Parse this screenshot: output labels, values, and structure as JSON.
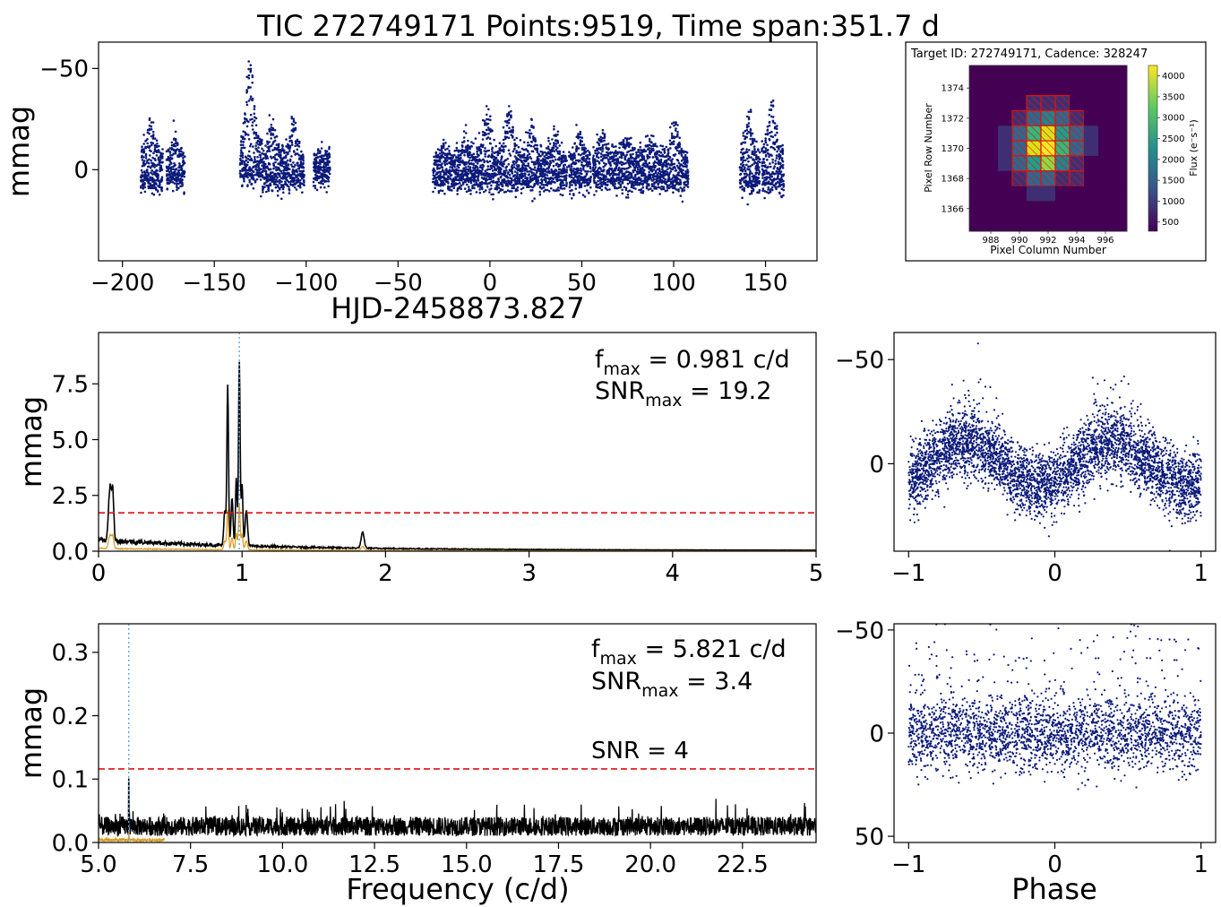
{
  "figure": {
    "title": "TIC 272749171  Points:9519,  Time span:351.7 d"
  },
  "colors": {
    "points": "#0b1a7a",
    "spectrum": "#000000",
    "spectrum_under": "#d89a1c",
    "threshold": "#e01010",
    "peak_marker": "#5aaaee",
    "snr_label": "#e01010"
  },
  "chart_data": [
    {
      "id": "lightcurve",
      "type": "scatter",
      "xlabel": "HJD-2458873.827",
      "ylabel": "mmag",
      "xlim": [
        -213,
        178
      ],
      "ylim": [
        45,
        -63
      ],
      "y_inverted": true,
      "xticks": [
        -200,
        -150,
        -100,
        -50,
        0,
        50,
        100,
        150
      ],
      "xtick_labels": [
        "−200",
        "−150",
        "−100",
        "−50",
        "0",
        "50",
        "100",
        "150"
      ],
      "yticks": [
        -50,
        0
      ],
      "ytick_labels": [
        "−50",
        "0"
      ],
      "segments": [
        {
          "x": [
            -190,
            -178
          ],
          "base": 0,
          "amp": 12,
          "peak": -28
        },
        {
          "x": [
            -176,
            -166
          ],
          "base": 0,
          "amp": 10,
          "peak": -20
        },
        {
          "x": [
            -136,
            -124
          ],
          "base": -5,
          "amp": 14,
          "peak": -53
        },
        {
          "x": [
            -124,
            -112
          ],
          "base": 0,
          "amp": 12,
          "peak": -28
        },
        {
          "x": [
            -112,
            -101
          ],
          "base": 0,
          "amp": 10,
          "peak": -30
        },
        {
          "x": [
            -96,
            -87
          ],
          "base": 0,
          "amp": 9,
          "peak": -12
        },
        {
          "x": [
            -31,
            -19
          ],
          "base": 0,
          "amp": 10,
          "peak": -15
        },
        {
          "x": [
            -19,
            -7
          ],
          "base": 0,
          "amp": 12,
          "peak": -20
        },
        {
          "x": [
            -7,
            5
          ],
          "base": 0,
          "amp": 12,
          "peak": -32
        },
        {
          "x": [
            5,
            17
          ],
          "base": 0,
          "amp": 12,
          "peak": -37
        },
        {
          "x": [
            17,
            30
          ],
          "base": 0,
          "amp": 11,
          "peak": -26
        },
        {
          "x": [
            30,
            42
          ],
          "base": 0,
          "amp": 10,
          "peak": -22
        },
        {
          "x": [
            43,
            55
          ],
          "base": 0,
          "amp": 11,
          "peak": -22
        },
        {
          "x": [
            56,
            68
          ],
          "base": 0,
          "amp": 11,
          "peak": -22
        },
        {
          "x": [
            68,
            82
          ],
          "base": 0,
          "amp": 11,
          "peak": -18
        },
        {
          "x": [
            82,
            95
          ],
          "base": 0,
          "amp": 11,
          "peak": -17
        },
        {
          "x": [
            95,
            108
          ],
          "base": 0,
          "amp": 11,
          "peak": -28
        },
        {
          "x": [
            136,
            147
          ],
          "base": 0,
          "amp": 13,
          "peak": -33
        },
        {
          "x": [
            148,
            160
          ],
          "base": 0,
          "amp": 13,
          "peak": -38
        }
      ]
    },
    {
      "id": "periodogram-low",
      "type": "line",
      "xlabel": "",
      "ylabel": "mmag",
      "xlim": [
        0,
        5
      ],
      "ylim": [
        0,
        9.8
      ],
      "xticks": [
        0,
        1,
        2,
        3,
        4,
        5
      ],
      "xtick_labels": [
        "0",
        "1",
        "2",
        "3",
        "4",
        "5"
      ],
      "yticks": [
        0,
        2.5,
        5.0,
        7.5
      ],
      "ytick_labels": [
        "0.0",
        "2.5",
        "5.0",
        "7.5"
      ],
      "threshold": 1.72,
      "peak_line_x": 0.981,
      "peaks": [
        {
          "f": 0.08,
          "a": 2.4,
          "w": 0.015
        },
        {
          "f": 0.1,
          "a": 1.9,
          "w": 0.01
        },
        {
          "f": 0.88,
          "a": 1.6,
          "w": 0.01
        },
        {
          "f": 0.9,
          "a": 7.2,
          "w": 0.008
        },
        {
          "f": 0.93,
          "a": 2.1,
          "w": 0.01
        },
        {
          "f": 0.96,
          "a": 3.0,
          "w": 0.008
        },
        {
          "f": 0.981,
          "a": 8.2,
          "w": 0.008
        },
        {
          "f": 1.0,
          "a": 2.8,
          "w": 0.008
        },
        {
          "f": 1.03,
          "a": 1.6,
          "w": 0.012
        },
        {
          "f": 1.84,
          "a": 0.7,
          "w": 0.015
        }
      ],
      "annotations": [
        {
          "main": "f",
          "sub": "max",
          "rest": " = 0.981 c/d"
        },
        {
          "main": "SNR",
          "sub": "max",
          "rest": " = 19.2"
        }
      ]
    },
    {
      "id": "phase-fold-1",
      "type": "scatter",
      "xlabel": "",
      "ylabel": "",
      "xlim": [
        -1.1,
        1.1
      ],
      "ylim": [
        42,
        -63
      ],
      "y_inverted": true,
      "xticks": [
        -1,
        0,
        1
      ],
      "xtick_labels": [
        "−1",
        "0",
        "1"
      ],
      "yticks": [
        -50,
        0
      ],
      "ytick_labels": [
        "−50",
        "0"
      ]
    },
    {
      "id": "periodogram-high",
      "type": "line",
      "xlabel": "Frequency (c/d)",
      "ylabel": "mmag",
      "xlim": [
        5.0,
        24.5
      ],
      "ylim": [
        0,
        0.345
      ],
      "xticks": [
        5.0,
        7.5,
        10.0,
        12.5,
        15.0,
        17.5,
        20.0,
        22.5
      ],
      "xtick_labels": [
        "5.0",
        "7.5",
        "10.0",
        "12.5",
        "15.0",
        "17.5",
        "20.0",
        "22.5"
      ],
      "yticks": [
        0,
        0.1,
        0.2,
        0.3
      ],
      "ytick_labels": [
        "0.0",
        "0.1",
        "0.2",
        "0.3"
      ],
      "threshold": 0.116,
      "threshold_label": "SNR = 4",
      "peak_line_x": 5.821,
      "noise_level": 0.03,
      "annotations": [
        {
          "main": "f",
          "sub": "max",
          "rest": " = 5.821 c/d"
        },
        {
          "main": "SNR",
          "sub": "max",
          "rest": " = 3.4"
        }
      ]
    },
    {
      "id": "phase-fold-2",
      "type": "scatter",
      "xlabel": "Phase",
      "ylabel": "",
      "xlim": [
        -1.1,
        1.1
      ],
      "ylim": [
        53,
        -53
      ],
      "y_inverted": true,
      "xticks": [
        -1,
        0,
        1
      ],
      "xtick_labels": [
        "−1",
        "0",
        "1"
      ],
      "yticks": [
        -50,
        0,
        50
      ],
      "ytick_labels": [
        "−50",
        "0",
        "50"
      ]
    },
    {
      "id": "tpf-image",
      "type": "heatmap",
      "title": "Target ID: 272749171, Cadence: 328247",
      "xlabel": "Pixel Column Number",
      "ylabel": "Pixel Row Number",
      "colorbar_label": "Flux (e⁻s⁻¹)",
      "xticks": [
        988,
        990,
        992,
        994,
        996
      ],
      "yticks": [
        1366,
        1368,
        1370,
        1372,
        1374
      ],
      "colorbar_ticks": [
        500,
        1000,
        1500,
        2000,
        2500,
        3000,
        3500,
        4000
      ],
      "grid": [
        [
          1,
          1,
          1,
          1,
          1,
          1,
          1,
          1,
          1,
          1,
          1
        ],
        [
          1,
          1,
          1,
          1,
          1,
          1,
          1,
          1,
          1,
          1,
          1
        ],
        [
          1,
          1,
          1,
          1,
          2,
          2,
          2,
          1,
          1,
          1,
          1
        ],
        [
          1,
          1,
          1,
          2,
          3,
          4,
          3,
          2,
          1,
          1,
          1
        ],
        [
          1,
          1,
          2,
          3,
          6,
          8,
          5,
          3,
          2,
          1,
          1
        ],
        [
          1,
          1,
          2,
          3,
          8,
          9,
          6,
          3,
          2,
          1,
          1
        ],
        [
          1,
          1,
          2,
          3,
          5,
          7,
          4,
          2,
          1,
          1,
          1
        ],
        [
          1,
          1,
          1,
          2,
          3,
          3,
          2,
          2,
          1,
          1,
          1
        ],
        [
          1,
          1,
          1,
          1,
          2,
          2,
          1,
          1,
          1,
          1,
          1
        ],
        [
          1,
          1,
          1,
          1,
          1,
          1,
          1,
          1,
          1,
          1,
          1
        ],
        [
          1,
          1,
          1,
          1,
          1,
          1,
          1,
          1,
          1,
          1,
          1
        ]
      ],
      "aperture_mask": [
        [
          0,
          0,
          0,
          0,
          0,
          0,
          0,
          0,
          0,
          0,
          0
        ],
        [
          0,
          0,
          0,
          0,
          0,
          0,
          0,
          0,
          0,
          0,
          0
        ],
        [
          0,
          0,
          0,
          0,
          1,
          1,
          1,
          0,
          0,
          0,
          0
        ],
        [
          0,
          0,
          0,
          1,
          1,
          1,
          1,
          1,
          0,
          0,
          0
        ],
        [
          0,
          0,
          0,
          1,
          1,
          1,
          1,
          1,
          0,
          0,
          0
        ],
        [
          0,
          0,
          0,
          1,
          1,
          1,
          1,
          1,
          0,
          0,
          0
        ],
        [
          0,
          0,
          0,
          1,
          1,
          1,
          1,
          1,
          0,
          0,
          0
        ],
        [
          0,
          0,
          0,
          1,
          1,
          1,
          1,
          1,
          0,
          0,
          0
        ],
        [
          0,
          0,
          0,
          0,
          0,
          0,
          0,
          0,
          0,
          0,
          0
        ],
        [
          0,
          0,
          0,
          0,
          0,
          0,
          0,
          0,
          0,
          0,
          0
        ],
        [
          0,
          0,
          0,
          0,
          0,
          0,
          0,
          0,
          0,
          0,
          0
        ]
      ]
    }
  ]
}
